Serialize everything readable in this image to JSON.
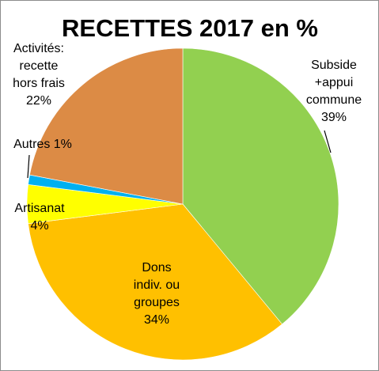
{
  "chart_data": {
    "type": "pie",
    "title": "RECETTES 2017 en %",
    "slices": [
      {
        "name": "Subside +appui commune",
        "value": 39,
        "label_lines": [
          "Subside",
          "+appui",
          "commune",
          "39%"
        ],
        "color": "#92D050"
      },
      {
        "name": "Dons indiv. ou groupes",
        "value": 34,
        "label_lines": [
          "Dons",
          "indiv. ou",
          "groupes",
          "34%"
        ],
        "color": "#FFC000"
      },
      {
        "name": "Artisanat",
        "value": 4,
        "label_lines": [
          "Artisanat",
          "4%"
        ],
        "color": "#FFFF00"
      },
      {
        "name": "Autres",
        "value": 1,
        "label_lines": [
          "Autres 1%"
        ],
        "color": "#00B0F0"
      },
      {
        "name": "Activités: recette hors frais",
        "value": 22,
        "label_lines": [
          "Activités:",
          "recette",
          "hors frais",
          "22%"
        ],
        "color": "#DC8B45"
      }
    ],
    "legend": "none",
    "start_angle_deg": 0,
    "direction": "clockwise"
  }
}
